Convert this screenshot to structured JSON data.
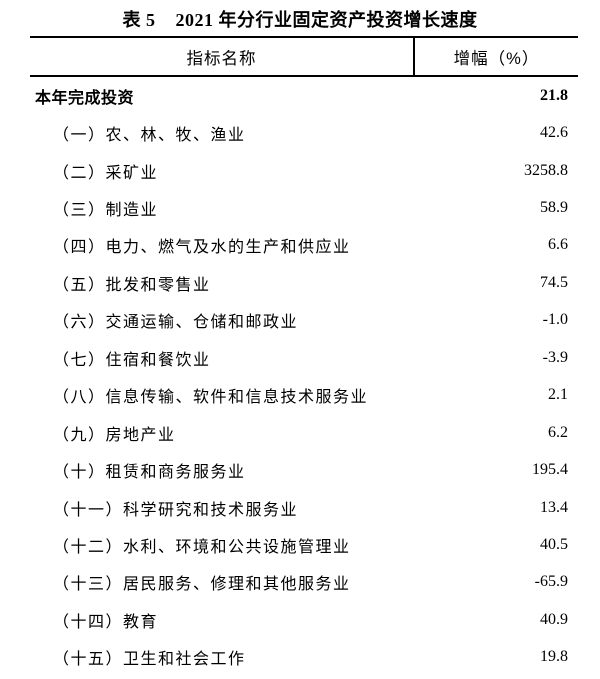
{
  "table": {
    "title_prefix": "表 5",
    "title_text": "2021 年分行业固定资产投资增长速度",
    "columns": {
      "name": "指标名称",
      "value": "增幅（%）"
    },
    "rows": [
      {
        "label": "本年完成投资",
        "value": "21.8",
        "bold": true,
        "indent": false
      },
      {
        "label": "（一）农、林、牧、渔业",
        "value": "42.6",
        "bold": false,
        "indent": true
      },
      {
        "label": "（二）采矿业",
        "value": "3258.8",
        "bold": false,
        "indent": true
      },
      {
        "label": "（三）制造业",
        "value": "58.9",
        "bold": false,
        "indent": true
      },
      {
        "label": "（四）电力、燃气及水的生产和供应业",
        "value": "6.6",
        "bold": false,
        "indent": true
      },
      {
        "label": "（五）批发和零售业",
        "value": "74.5",
        "bold": false,
        "indent": true
      },
      {
        "label": "（六）交通运输、仓储和邮政业",
        "value": "-1.0",
        "bold": false,
        "indent": true
      },
      {
        "label": "（七）住宿和餐饮业",
        "value": "-3.9",
        "bold": false,
        "indent": true
      },
      {
        "label": "（八）信息传输、软件和信息技术服务业",
        "value": "2.1",
        "bold": false,
        "indent": true
      },
      {
        "label": "（九）房地产业",
        "value": "6.2",
        "bold": false,
        "indent": true
      },
      {
        "label": "（十）租赁和商务服务业",
        "value": "195.4",
        "bold": false,
        "indent": true
      },
      {
        "label": "（十一）科学研究和技术服务业",
        "value": "13.4",
        "bold": false,
        "indent": true
      },
      {
        "label": "（十二）水利、环境和公共设施管理业",
        "value": "40.5",
        "bold": false,
        "indent": true
      },
      {
        "label": "（十三）居民服务、修理和其他服务业",
        "value": "-65.9",
        "bold": false,
        "indent": true
      },
      {
        "label": "（十四）教育",
        "value": "40.9",
        "bold": false,
        "indent": true
      },
      {
        "label": "（十五）卫生和社会工作",
        "value": "19.8",
        "bold": false,
        "indent": true
      }
    ]
  }
}
